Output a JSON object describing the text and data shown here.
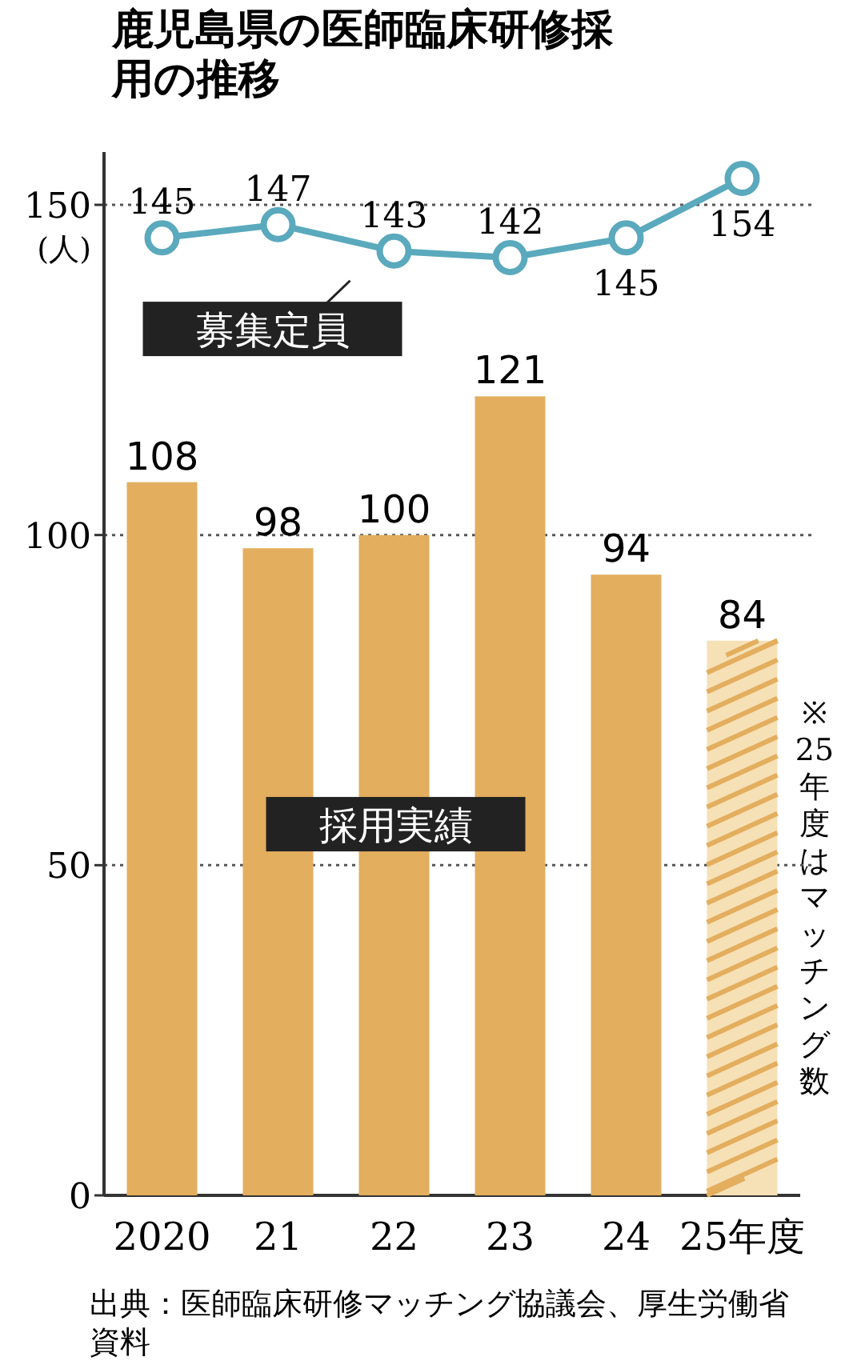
{
  "chart_data": {
    "type": "bar",
    "title": "鹿児島県の医師臨床研修採用の推移",
    "ylabel": "(人)",
    "categories": [
      "2020",
      "21",
      "22",
      "23",
      "24",
      "25年度"
    ],
    "series": [
      {
        "name": "採用実績",
        "color": "#e3ae5e",
        "colors": [
          "#e3ae5e",
          "#e3ae5e",
          "#e3ae5e",
          "#e3ae5e",
          "#e3ae5e",
          "#f6e0b6"
        ],
        "values": [
          108,
          98,
          100,
          121,
          94,
          84
        ]
      },
      {
        "name": "募集定員",
        "type": "line",
        "color": "#5aa9bd",
        "values": [
          145,
          147,
          143,
          142,
          145,
          154
        ]
      }
    ],
    "ylim": [
      0,
      158
    ],
    "yticks": [
      0,
      50,
      100,
      150
    ],
    "grid": "y",
    "data_labels": true,
    "marker": "circle",
    "annotations": [
      "※25年度はマッチング数",
      "出典：医師臨床研修マッチング協議会、厚生労働省資料"
    ]
  }
}
